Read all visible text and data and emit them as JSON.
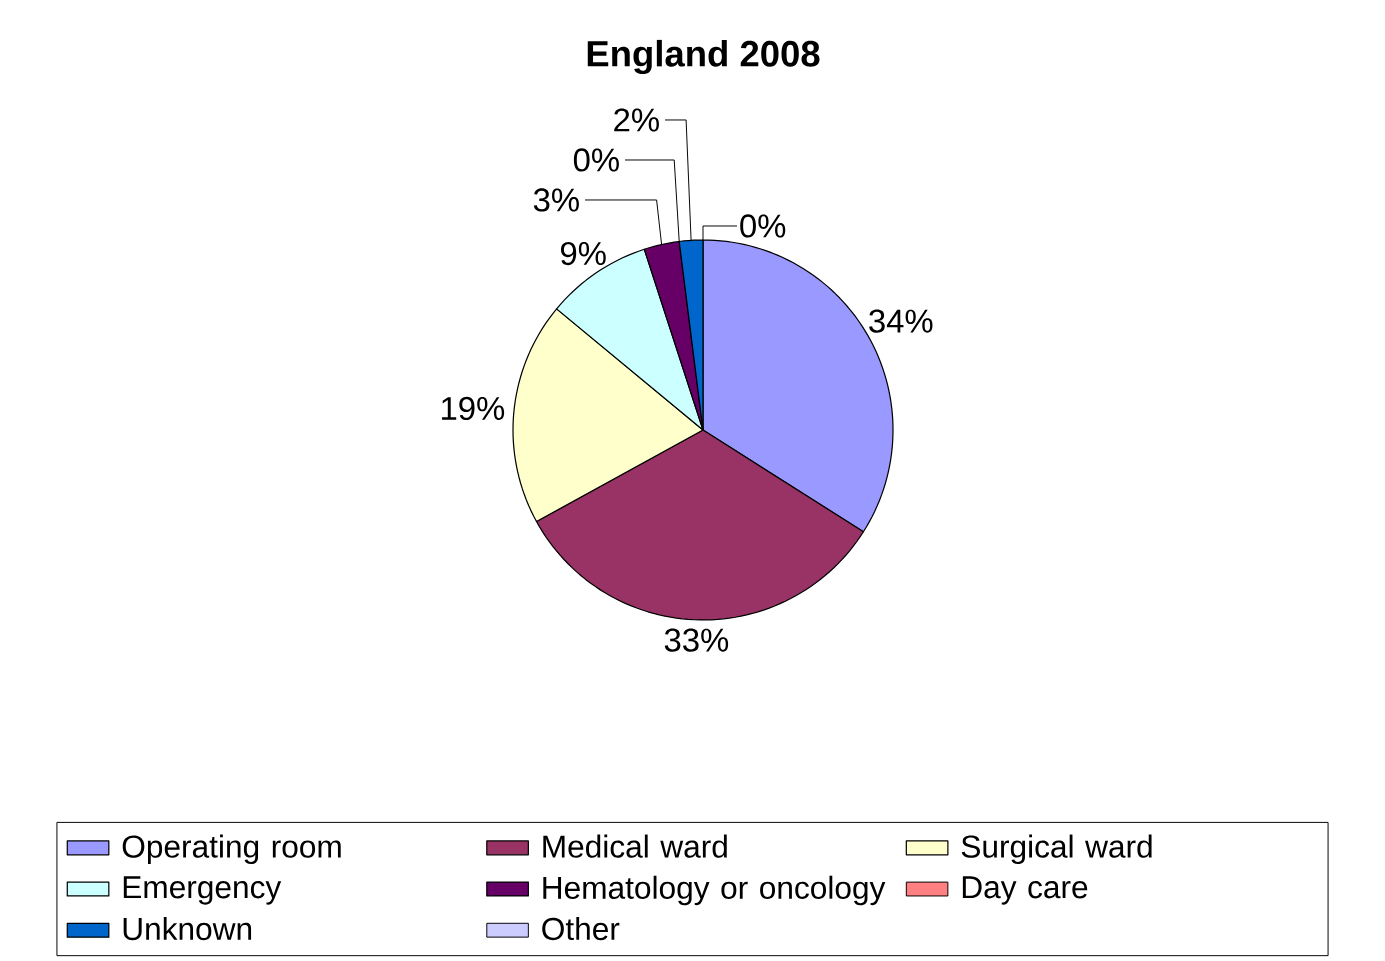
{
  "chart_data": {
    "type": "pie",
    "title": "England 2008",
    "categories": [
      "Operating room",
      "Medical ward",
      "Surgical ward",
      "Emergency",
      "Hematology or oncology",
      "Day care",
      "Unknown",
      "Other"
    ],
    "values": [
      34,
      33,
      19,
      9,
      3,
      0,
      2,
      0
    ],
    "value_labels": [
      "34%",
      "33%",
      "19%",
      "9%",
      "3%",
      "0%",
      "2%",
      "0%"
    ],
    "colors": [
      "#9999ff",
      "#993366",
      "#ffffcc",
      "#ccffff",
      "#660066",
      "#ff8080",
      "#0066cc",
      "#ccccff"
    ],
    "legend": "bottom"
  }
}
